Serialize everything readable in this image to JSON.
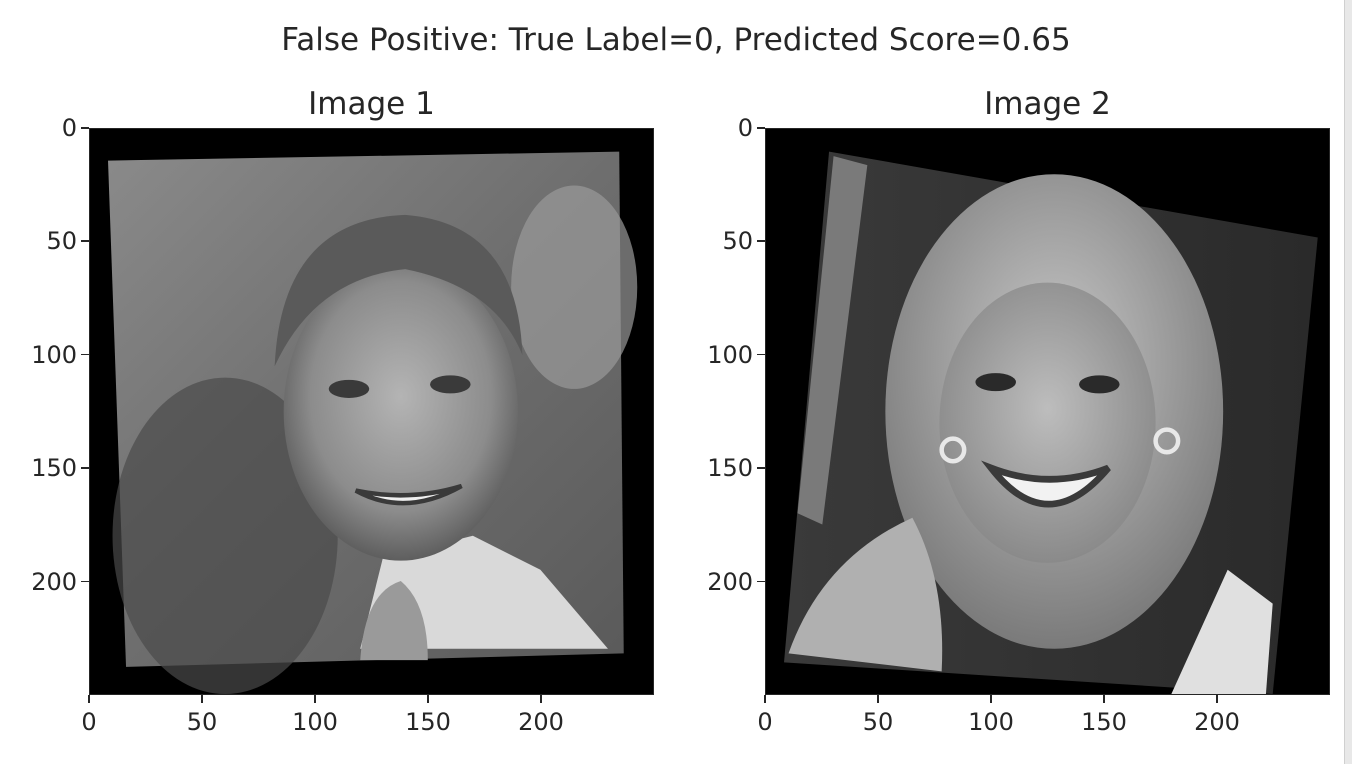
{
  "figure": {
    "suptitle": "False Positive: True Label=0, Predicted Score=0.65"
  },
  "chart_data": [
    {
      "type": "image",
      "title": "Image 1",
      "colormap": "gray",
      "content": "grayscale face photo",
      "xlim": [
        0,
        250
      ],
      "ylim": [
        250,
        0
      ],
      "x_ticks": [
        0,
        50,
        100,
        150,
        200
      ],
      "y_ticks": [
        0,
        50,
        100,
        150,
        200
      ],
      "x_tick_labels": [
        "0",
        "50",
        "100",
        "150",
        "200"
      ],
      "y_tick_labels": [
        "0",
        "50",
        "100",
        "150",
        "200"
      ]
    },
    {
      "type": "image",
      "title": "Image 2",
      "colormap": "gray",
      "content": "grayscale face photo",
      "xlim": [
        0,
        250
      ],
      "ylim": [
        250,
        0
      ],
      "x_ticks": [
        0,
        50,
        100,
        150,
        200
      ],
      "y_ticks": [
        0,
        50,
        100,
        150,
        200
      ],
      "x_tick_labels": [
        "0",
        "50",
        "100",
        "150",
        "200"
      ],
      "y_tick_labels": [
        "0",
        "50",
        "100",
        "150",
        "200"
      ]
    }
  ]
}
